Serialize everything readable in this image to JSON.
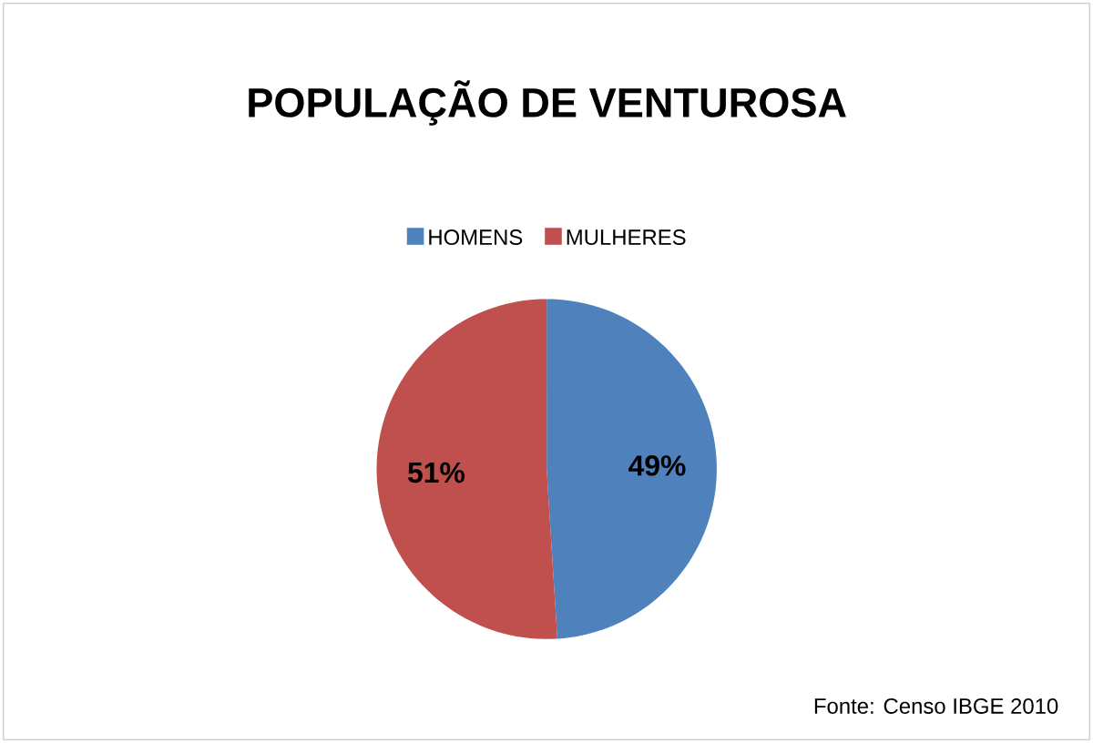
{
  "chart_data": {
    "type": "pie",
    "title": "POPULAÇÃO DE VENTUROSA",
    "categories": [
      "HOMENS",
      "MULHERES"
    ],
    "values": [
      49,
      51
    ],
    "colors": [
      "#4f81bd",
      "#c0504d"
    ],
    "legend": "top",
    "value_labels": [
      "49%",
      "51%"
    ],
    "annotations": [
      "Fonte: Censo IBGE 2010"
    ]
  }
}
